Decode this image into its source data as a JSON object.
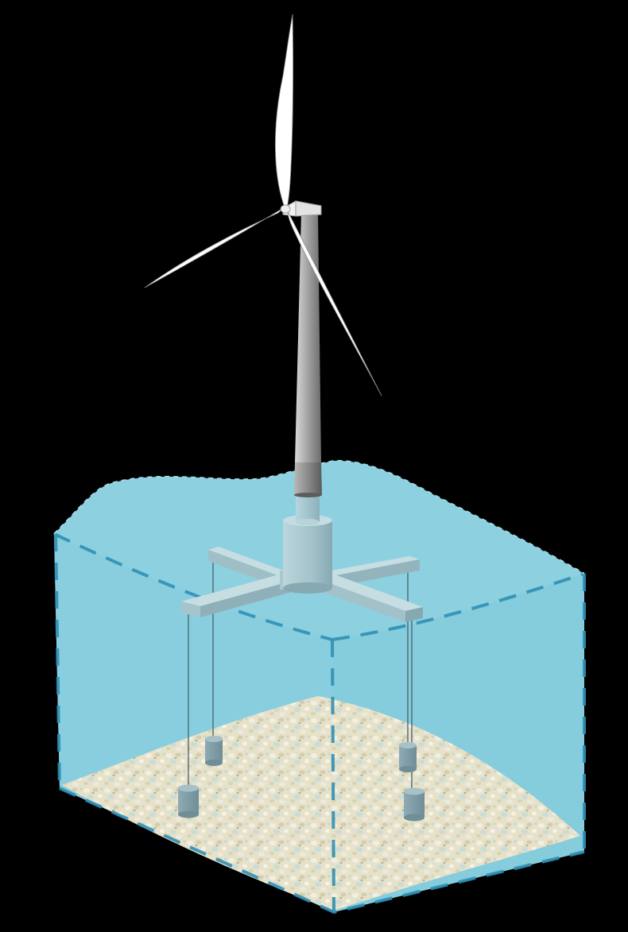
{
  "diagram": {
    "components": [
      {
        "id": "rotor",
        "icon": "wind-turbine-rotor-icon"
      },
      {
        "id": "nacelle",
        "icon": "nacelle-icon"
      },
      {
        "id": "tower",
        "icon": "tower-icon"
      },
      {
        "id": "spar-column",
        "icon": "spar-column-icon"
      },
      {
        "id": "cross-pontoons",
        "icon": "cross-pontoon-icon"
      },
      {
        "id": "tendons",
        "icon": "tendon-line-icon",
        "count": 4
      },
      {
        "id": "anchor-weights",
        "icon": "anchor-weight-icon",
        "count": 4
      },
      {
        "id": "water-volume",
        "icon": "water-volume-icon"
      },
      {
        "id": "seabed",
        "icon": "seabed-gravel-icon"
      }
    ],
    "colors": {
      "background": "#000000",
      "water": "#8dd0e0",
      "water_edge": "#2f90b5",
      "structure": "#a9c7cf",
      "structure_dark": "#7fa2ab",
      "tower_light": "#d8d8d8",
      "tower_dark": "#6e6e6e",
      "blade": "#ffffff",
      "seabed": "#e7e2cc"
    }
  }
}
